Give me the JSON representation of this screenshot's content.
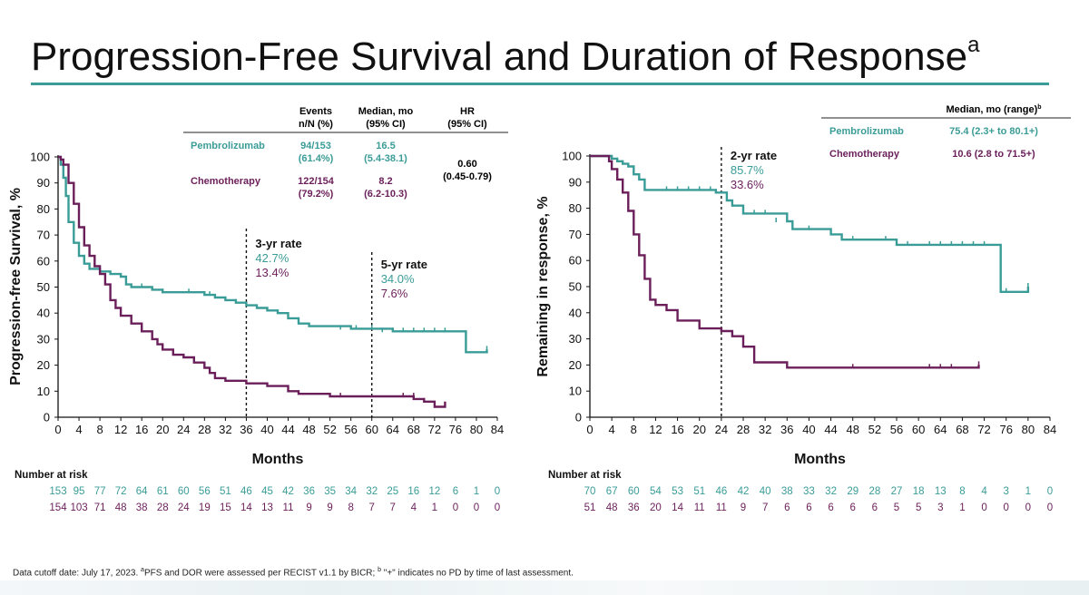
{
  "title": "Progression-Free Survival and Duration of Response",
  "title_sup": "a",
  "footnote": {
    "pre": "Data cutoff date: July 17, 2023. ",
    "sup_a": "a",
    "mid": "PFS and DOR were assessed per RECIST v1.1 by BICR; ",
    "sup_b": "b",
    "post": " \"+\" indicates no PD by time of last assessment."
  },
  "colors": {
    "pembro": "#3a9c97",
    "chemo": "#6b1f5a",
    "rule": "#3a9c97"
  },
  "chart_data": [
    {
      "type": "line",
      "subtype": "kaplan-meier",
      "xlabel": "Months",
      "ylabel": "Progression-free Survival, %",
      "xlim": [
        0,
        84
      ],
      "ylim": [
        0,
        100
      ],
      "xticks": [
        0,
        4,
        8,
        12,
        16,
        20,
        24,
        28,
        32,
        36,
        40,
        44,
        48,
        52,
        56,
        60,
        64,
        68,
        72,
        76,
        80,
        84
      ],
      "yticks": [
        0,
        10,
        20,
        30,
        40,
        50,
        60,
        70,
        80,
        90,
        100
      ],
      "table": {
        "headers": [
          [
            "Events",
            "n/N (%)"
          ],
          [
            "Median, mo",
            "(95% CI)"
          ],
          [
            "HR",
            "(95% CI)"
          ]
        ],
        "rows": [
          {
            "name": "Pembrolizumab",
            "events": [
              "94/153",
              "(61.4%)"
            ],
            "median": [
              "16.5",
              "(5.4-38.1)"
            ]
          },
          {
            "name": "Chemotherapy",
            "events": [
              "122/154",
              "(79.2%)"
            ],
            "median": [
              "8.2",
              "(6.2-10.3)"
            ]
          }
        ],
        "hr": [
          "0.60",
          "(0.45-0.79)"
        ]
      },
      "annotations": [
        {
          "x": 36,
          "label": "3-yr rate",
          "pembro": "42.7%",
          "chemo": "13.4%"
        },
        {
          "x": 60,
          "label": "5-yr rate",
          "pembro": "34.0%",
          "chemo": "7.6%"
        }
      ],
      "series": [
        {
          "name": "Pembrolizumab",
          "color_key": "pembro",
          "points": [
            [
              0,
              100
            ],
            [
              0.5,
              97
            ],
            [
              1,
              92
            ],
            [
              1.5,
              85
            ],
            [
              2,
              75
            ],
            [
              3,
              67
            ],
            [
              4,
              62
            ],
            [
              5,
              59
            ],
            [
              6,
              57
            ],
            [
              8,
              56
            ],
            [
              10,
              55
            ],
            [
              12,
              54
            ],
            [
              13,
              51
            ],
            [
              14,
              50
            ],
            [
              16,
              50
            ],
            [
              18,
              49
            ],
            [
              20,
              48
            ],
            [
              24,
              48
            ],
            [
              28,
              47
            ],
            [
              30,
              46
            ],
            [
              32,
              45
            ],
            [
              34,
              44
            ],
            [
              36,
              43
            ],
            [
              38,
              42
            ],
            [
              40,
              41
            ],
            [
              42,
              40
            ],
            [
              44,
              38
            ],
            [
              46,
              36
            ],
            [
              48,
              35
            ],
            [
              56,
              34
            ],
            [
              60,
              34
            ],
            [
              64,
              33
            ],
            [
              78,
              33
            ],
            [
              78,
              25
            ],
            [
              82,
              25
            ],
            [
              82,
              26
            ]
          ],
          "censors": [
            [
              14,
              50
            ],
            [
              16,
              50
            ],
            [
              20,
              48
            ],
            [
              25,
              48
            ],
            [
              29,
              47
            ],
            [
              34,
              44
            ],
            [
              38,
              42
            ],
            [
              44,
              38
            ],
            [
              48,
              35
            ],
            [
              54,
              34
            ],
            [
              57,
              34
            ],
            [
              60,
              34
            ],
            [
              62,
              33
            ],
            [
              64,
              33
            ],
            [
              66,
              33
            ],
            [
              68,
              33
            ],
            [
              70,
              33
            ],
            [
              72,
              33
            ],
            [
              74,
              33
            ],
            [
              82,
              26
            ]
          ],
          "at_risk": [
            "153",
            "95",
            "77",
            "72",
            "64",
            "61",
            "60",
            "56",
            "51",
            "46",
            "45",
            "42",
            "36",
            "35",
            "34",
            "32",
            "25",
            "16",
            "12",
            "6",
            "1",
            "0"
          ]
        },
        {
          "name": "Chemotherapy",
          "color_key": "chemo",
          "points": [
            [
              0,
              100
            ],
            [
              0.5,
              99
            ],
            [
              1,
              97
            ],
            [
              2,
              90
            ],
            [
              3,
              82
            ],
            [
              4,
              73
            ],
            [
              5,
              66
            ],
            [
              6,
              62
            ],
            [
              7,
              58
            ],
            [
              8,
              55
            ],
            [
              9,
              51
            ],
            [
              10,
              45
            ],
            [
              11,
              42
            ],
            [
              12,
              39
            ],
            [
              14,
              36
            ],
            [
              16,
              33
            ],
            [
              18,
              30
            ],
            [
              19,
              28
            ],
            [
              20,
              26
            ],
            [
              22,
              24
            ],
            [
              24,
              23
            ],
            [
              26,
              21
            ],
            [
              28,
              19
            ],
            [
              29,
              17
            ],
            [
              30,
              15
            ],
            [
              32,
              14
            ],
            [
              36,
              13
            ],
            [
              40,
              12
            ],
            [
              44,
              10
            ],
            [
              46,
              9
            ],
            [
              52,
              8
            ],
            [
              60,
              8
            ],
            [
              68,
              7
            ],
            [
              70,
              6
            ],
            [
              72,
              4
            ],
            [
              74,
              6
            ]
          ],
          "censors": [
            [
              54,
              8
            ],
            [
              66,
              8
            ],
            [
              68,
              8
            ],
            [
              70,
              6
            ]
          ],
          "at_risk": [
            "154",
            "103",
            "71",
            "48",
            "38",
            "28",
            "24",
            "19",
            "15",
            "14",
            "13",
            "11",
            "9",
            "9",
            "8",
            "7",
            "7",
            "4",
            "1",
            "0",
            "0",
            "0"
          ]
        }
      ],
      "at_risk_label": "Number at risk"
    },
    {
      "type": "line",
      "subtype": "kaplan-meier",
      "xlabel": "Months",
      "ylabel": "Remaining in response, %",
      "xlim": [
        0,
        84
      ],
      "ylim": [
        0,
        100
      ],
      "xticks": [
        0,
        4,
        8,
        12,
        16,
        20,
        24,
        28,
        32,
        36,
        40,
        44,
        48,
        52,
        56,
        60,
        64,
        68,
        72,
        76,
        80,
        84
      ],
      "yticks": [
        0,
        10,
        20,
        30,
        40,
        50,
        60,
        70,
        80,
        90,
        100
      ],
      "table": {
        "header": "Median, mo (range)",
        "header_sup": "b",
        "rows": [
          {
            "name": "Pembrolizumab",
            "median": "75.4 (2.3+ to 80.1+)"
          },
          {
            "name": "Chemotherapy",
            "median": "10.6 (2.8 to 71.5+)"
          }
        ]
      },
      "annotations": [
        {
          "x": 24,
          "label": "2-yr rate",
          "pembro": "85.7%",
          "chemo": "33.6%"
        }
      ],
      "series": [
        {
          "name": "Pembrolizumab",
          "color_key": "pembro",
          "points": [
            [
              0,
              100
            ],
            [
              3,
              100
            ],
            [
              4,
              99
            ],
            [
              5,
              98
            ],
            [
              6,
              97
            ],
            [
              7,
              96
            ],
            [
              8,
              93
            ],
            [
              9,
              91
            ],
            [
              10,
              87
            ],
            [
              22,
              87
            ],
            [
              23,
              86
            ],
            [
              25,
              83
            ],
            [
              26,
              81
            ],
            [
              28,
              78
            ],
            [
              36,
              75
            ],
            [
              37,
              72
            ],
            [
              44,
              70
            ],
            [
              46,
              68
            ],
            [
              52,
              68
            ],
            [
              56,
              66
            ],
            [
              75,
              65
            ],
            [
              75,
              48
            ],
            [
              80,
              48
            ],
            [
              80,
              50
            ]
          ],
          "censors": [
            [
              4,
              99
            ],
            [
              5,
              98
            ],
            [
              6,
              97
            ],
            [
              7,
              96
            ],
            [
              8,
              93
            ],
            [
              14,
              87
            ],
            [
              16,
              87
            ],
            [
              18,
              87
            ],
            [
              20,
              87
            ],
            [
              22,
              87
            ],
            [
              23,
              86
            ],
            [
              26,
              81
            ],
            [
              30,
              78
            ],
            [
              32,
              78
            ],
            [
              34,
              75
            ],
            [
              40,
              72
            ],
            [
              44,
              70
            ],
            [
              48,
              68
            ],
            [
              54,
              68
            ],
            [
              56,
              66
            ],
            [
              58,
              66
            ],
            [
              62,
              66
            ],
            [
              64,
              66
            ],
            [
              66,
              66
            ],
            [
              68,
              66
            ],
            [
              70,
              66
            ],
            [
              72,
              66
            ],
            [
              76,
              48
            ],
            [
              80,
              50
            ]
          ],
          "at_risk": [
            "70",
            "67",
            "60",
            "54",
            "53",
            "51",
            "46",
            "42",
            "40",
            "38",
            "33",
            "32",
            "29",
            "28",
            "27",
            "18",
            "13",
            "8",
            "4",
            "3",
            "1",
            "0"
          ]
        },
        {
          "name": "Chemotherapy",
          "color_key": "chemo",
          "points": [
            [
              0,
              100
            ],
            [
              3,
              100
            ],
            [
              3.5,
              98
            ],
            [
              4,
              95
            ],
            [
              5,
              91
            ],
            [
              6,
              86
            ],
            [
              7,
              79
            ],
            [
              8,
              70
            ],
            [
              9,
              62
            ],
            [
              10,
              53
            ],
            [
              11,
              45
            ],
            [
              12,
              43
            ],
            [
              14,
              41
            ],
            [
              16,
              37
            ],
            [
              20,
              34
            ],
            [
              24,
              33
            ],
            [
              26,
              31
            ],
            [
              28,
              27
            ],
            [
              30,
              21
            ],
            [
              36,
              19
            ],
            [
              71,
              19
            ],
            [
              71,
              20
            ]
          ],
          "censors": [
            [
              12,
              43
            ],
            [
              14,
              41
            ],
            [
              48,
              19
            ],
            [
              62,
              19
            ],
            [
              64,
              19
            ],
            [
              66,
              19
            ],
            [
              71,
              20
            ]
          ],
          "at_risk": [
            "51",
            "48",
            "36",
            "20",
            "14",
            "11",
            "11",
            "9",
            "7",
            "6",
            "6",
            "6",
            "6",
            "6",
            "5",
            "5",
            "3",
            "1",
            "0",
            "0",
            "0",
            "0"
          ]
        }
      ],
      "at_risk_label": "Number at risk"
    }
  ]
}
